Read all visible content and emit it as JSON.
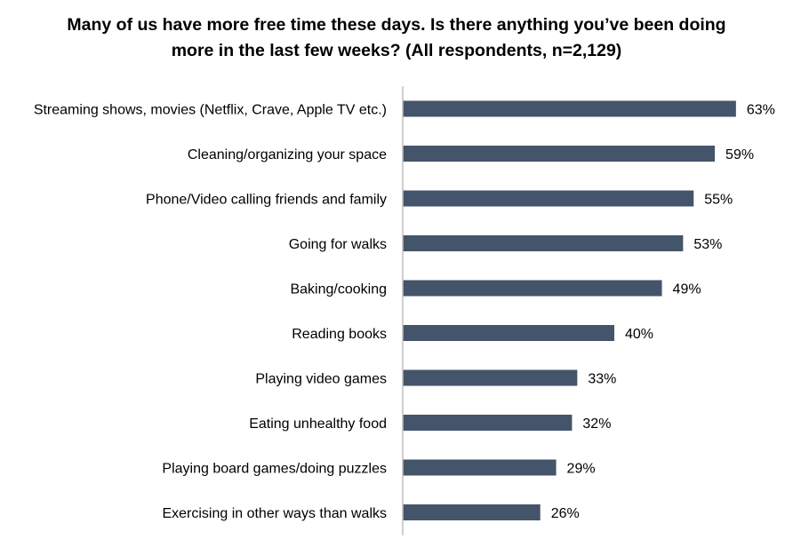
{
  "chart_data": {
    "type": "bar",
    "orientation": "horizontal",
    "title": "Many of us have more free time these days. Is there anything you’ve been doing more in the last few weeks? (All respondents, n=2,129)",
    "xlabel": "",
    "ylabel": "",
    "categories": [
      "Streaming shows, movies (Netflix, Crave, Apple TV etc.)",
      "Cleaning/organizing your space",
      "Phone/Video calling friends and family",
      "Going for walks",
      "Baking/cooking",
      "Reading books",
      "Playing video games",
      "Eating unhealthy food",
      "Playing board games/doing puzzles",
      "Exercising in other ways than walks"
    ],
    "values": [
      63,
      59,
      55,
      53,
      49,
      40,
      33,
      32,
      29,
      26
    ],
    "value_labels": [
      "63%",
      "59%",
      "55%",
      "53%",
      "49%",
      "40%",
      "33%",
      "32%",
      "29%",
      "26%"
    ],
    "unit": "%",
    "xlim": [
      0,
      70
    ],
    "grid": false,
    "legend": "none",
    "bar_color": "#44546a",
    "axis_color": "#bfbfbf"
  }
}
